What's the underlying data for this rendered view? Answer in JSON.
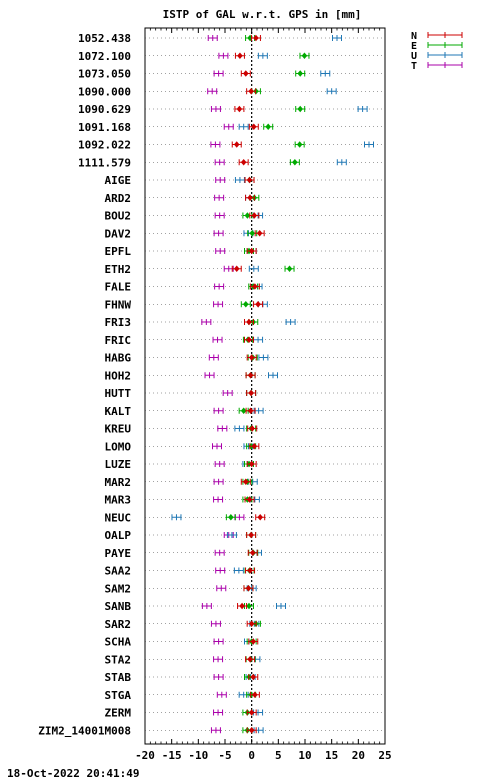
{
  "chart_data": {
    "type": "scatter",
    "title": "ISTP of GAL w.r.t. GPS in [mm]",
    "xlim": [
      -20,
      25
    ],
    "x_ticks": [
      -20,
      -15,
      -10,
      -5,
      0,
      5,
      10,
      15,
      20,
      25
    ],
    "grid": "horizontal dotted lines per station",
    "reference_line": "vertical dotted line at x=0",
    "legend_placement": "top-right, outside plot",
    "series": [
      {
        "name": "N",
        "color": "#cc0000"
      },
      {
        "name": "E",
        "color": "#00aa00"
      },
      {
        "name": "U",
        "color": "#1f77b4"
      },
      {
        "name": "T",
        "color": "#aa00aa"
      }
    ],
    "categories": [
      "1052.438",
      "1072.100",
      "1073.050",
      "1090.000",
      "1090.629",
      "1091.168",
      "1092.022",
      "1111.579",
      "AIGE",
      "ARD2",
      "BOU2",
      "DAV2",
      "EPFL",
      "ETH2",
      "FALE",
      "FHNW",
      "FRI3",
      "FRIC",
      "HABG",
      "HOH2",
      "HUTT",
      "KALT",
      "KREU",
      "LOMO",
      "LUZE",
      "MAR2",
      "MAR3",
      "NEUC",
      "OALP",
      "PAYE",
      "SAA2",
      "SAM2",
      "SANB",
      "SAR2",
      "SCHA",
      "STA2",
      "STAB",
      "STGA",
      "ZERM",
      "ZIM2_14001M008"
    ],
    "points": [
      {
        "N": 0.8,
        "E": -0.3,
        "U": 16.0,
        "T": -7.3
      },
      {
        "N": -2.2,
        "E": 9.9,
        "U": 2.1,
        "T": -5.3
      },
      {
        "N": -1.1,
        "E": 9.1,
        "U": 13.8,
        "T": -6.2
      },
      {
        "N": -0.1,
        "E": 0.8,
        "U": 15.0,
        "T": -7.4
      },
      {
        "N": -2.3,
        "E": 9.1,
        "U": 20.8,
        "T": -6.7
      },
      {
        "N": 0.4,
        "E": 3.1,
        "U": -1.5,
        "T": -4.3
      },
      {
        "N": -2.8,
        "E": 9.0,
        "U": 22.0,
        "T": -6.8
      },
      {
        "N": -1.5,
        "E": 8.1,
        "U": 16.9,
        "T": -6.0
      },
      {
        "N": -0.4,
        "E": -0.4,
        "U": -2.2,
        "T": -5.9
      },
      {
        "N": -0.3,
        "E": 0.5,
        "U": -0.3,
        "T": -6.1
      },
      {
        "N": 0.5,
        "E": -0.8,
        "U": 1.2,
        "T": -6.0
      },
      {
        "N": 1.5,
        "E": 0.1,
        "U": -0.6,
        "T": -6.2
      },
      {
        "N": 0.0,
        "E": -0.5,
        "U": 0.0,
        "T": -5.9
      },
      {
        "N": -2.8,
        "E": 7.1,
        "U": 0.4,
        "T": -4.3
      },
      {
        "N": 0.6,
        "E": 0.3,
        "U": 1.1,
        "T": -6.1
      },
      {
        "N": 1.2,
        "E": -1.1,
        "U": 2.1,
        "T": -6.3
      },
      {
        "N": -0.5,
        "E": 0.3,
        "U": 7.3,
        "T": -8.5
      },
      {
        "N": -0.5,
        "E": -0.7,
        "U": 1.2,
        "T": -6.4
      },
      {
        "N": 0.0,
        "E": 0.2,
        "U": 2.2,
        "T": -7.1
      },
      {
        "N": -0.2,
        "E": -0.2,
        "U": 4.0,
        "T": -7.9
      },
      {
        "N": -0.1,
        "E": -0.1,
        "U": -0.1,
        "T": -4.5
      },
      {
        "N": -0.2,
        "E": -1.5,
        "U": 1.3,
        "T": -6.2
      },
      {
        "N": 0.1,
        "E": -0.1,
        "U": -2.3,
        "T": -5.5
      },
      {
        "N": 0.5,
        "E": -0.1,
        "U": -0.6,
        "T": -6.5
      },
      {
        "N": 0.0,
        "E": -0.5,
        "U": -0.8,
        "T": -6.0
      },
      {
        "N": -1.1,
        "E": -0.8,
        "U": 0.2,
        "T": -6.2
      },
      {
        "N": -0.4,
        "E": -0.8,
        "U": 0.6,
        "T": -6.3
      },
      {
        "N": 1.6,
        "E": -3.9,
        "U": -14.1,
        "T": -2.3
      },
      {
        "N": -0.1,
        "E": -0.1,
        "U": -3.7,
        "T": -4.3
      },
      {
        "N": 0.2,
        "E": 0.3,
        "U": 1.0,
        "T": -6.0
      },
      {
        "N": -0.3,
        "E": -0.4,
        "U": -2.4,
        "T": -5.9
      },
      {
        "N": -0.6,
        "E": -0.6,
        "U": 0.0,
        "T": -5.7
      },
      {
        "N": -1.8,
        "E": -0.5,
        "U": 5.5,
        "T": -8.4
      },
      {
        "N": 0.0,
        "E": 0.8,
        "U": 0.5,
        "T": -6.7
      },
      {
        "N": 0.3,
        "E": 0.0,
        "U": -0.5,
        "T": -6.2
      },
      {
        "N": -0.3,
        "E": -0.2,
        "U": 0.7,
        "T": -6.3
      },
      {
        "N": 0.3,
        "E": -0.5,
        "U": -0.2,
        "T": -6.2
      },
      {
        "N": 0.6,
        "E": -0.1,
        "U": -1.5,
        "T": -5.6
      },
      {
        "N": 0.0,
        "E": -0.8,
        "U": 1.2,
        "T": -6.3
      },
      {
        "N": 0.0,
        "E": -0.8,
        "U": 1.3,
        "T": -6.7
      }
    ]
  },
  "footer": {
    "timestamp": "18-Oct-2022 20:41:49"
  }
}
